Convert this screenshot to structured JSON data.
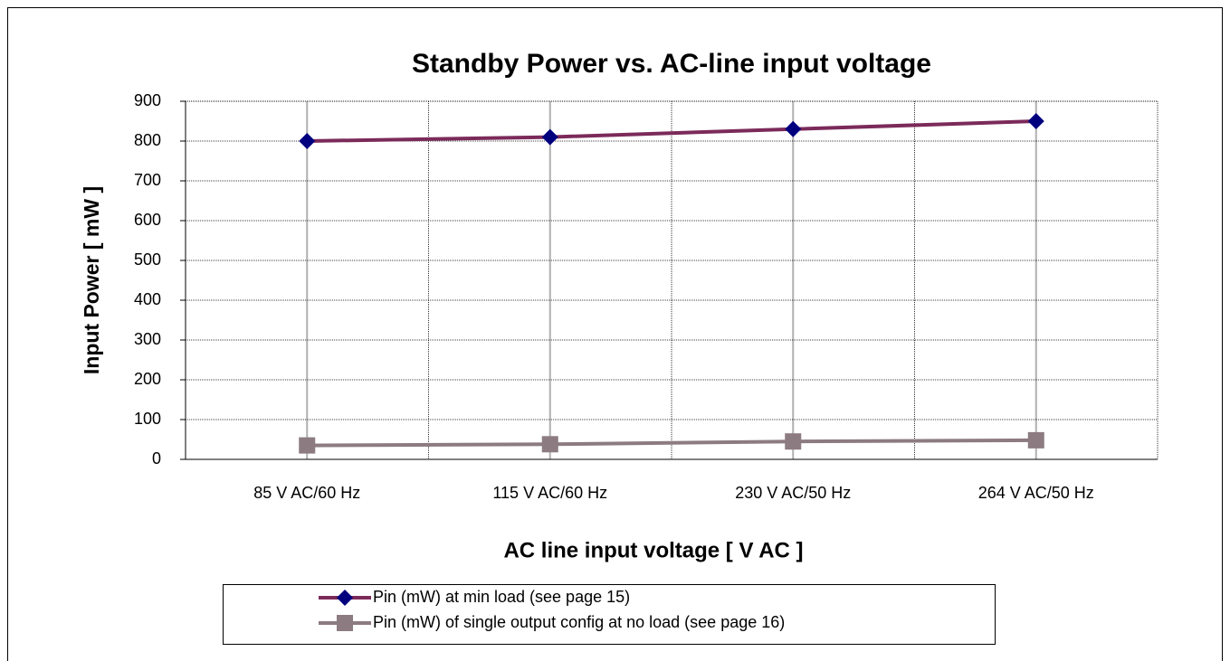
{
  "chart_data": {
    "type": "line",
    "title": "Standby Power vs. AC-line input voltage",
    "x_label": "AC line input voltage [ V AC ]",
    "y_label": "Input Power [ mW ]",
    "categories": [
      "85 V AC/60 Hz",
      "115 V AC/60 Hz",
      "230 V AC/50 Hz",
      "264 V AC/50 Hz"
    ],
    "series": [
      {
        "name": "Pin (mW) at min load (see page 15)",
        "color": "#7b2a5a",
        "marker": "diamond",
        "marker_color": "#00007f",
        "values": [
          800,
          810,
          830,
          850
        ]
      },
      {
        "name": "Pin (mW) of single output config at no load (see page 16)",
        "color": "#8c7b80",
        "marker": "square",
        "marker_color": "#8c7b80",
        "values": [
          35,
          38,
          45,
          48
        ]
      }
    ],
    "ylim": [
      0,
      900
    ],
    "yticks": [
      0,
      100,
      200,
      300,
      400,
      500,
      600,
      700,
      800,
      900
    ],
    "grid": true,
    "legend": "bottom"
  }
}
